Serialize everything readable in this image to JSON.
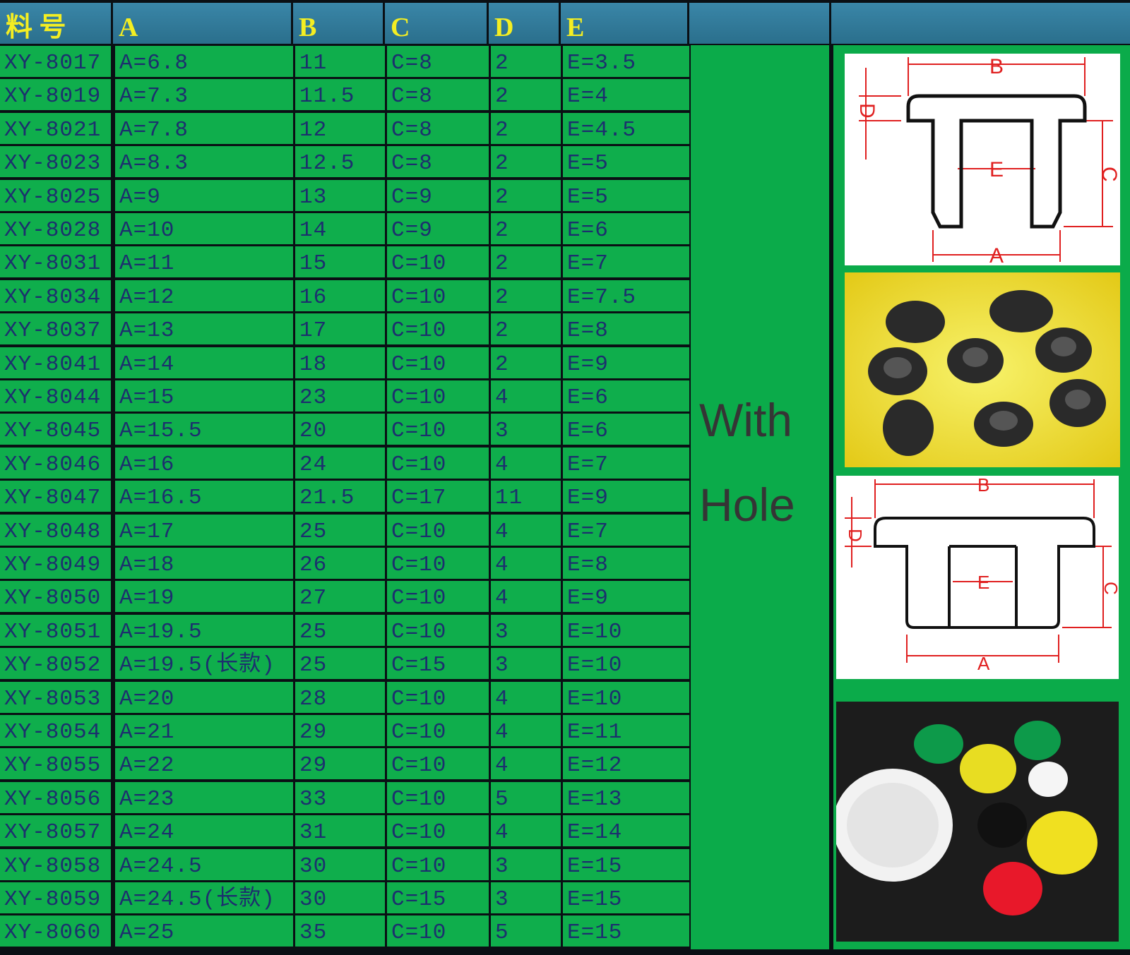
{
  "header": {
    "part_no": "料 号",
    "cols": [
      "A",
      "B",
      "C",
      "D",
      "E"
    ]
  },
  "rows": [
    [
      "XY-8017",
      "A=6.8",
      "11",
      "C=8",
      "2",
      "E=3.5"
    ],
    [
      "XY-8019",
      "A=7.3",
      "11.5",
      "C=8",
      "2",
      "E=4"
    ],
    [
      "XY-8021",
      "A=7.8",
      "12",
      "C=8",
      "2",
      "E=4.5"
    ],
    [
      "XY-8023",
      "A=8.3",
      "12.5",
      "C=8",
      "2",
      "E=5"
    ],
    [
      "XY-8025",
      "A=9",
      "13",
      "C=9",
      "2",
      "E=5"
    ],
    [
      "XY-8028",
      "A=10",
      "14",
      "C=9",
      "2",
      "E=6"
    ],
    [
      "XY-8031",
      "A=11",
      "15",
      "C=10",
      "2",
      "E=7"
    ],
    [
      "XY-8034",
      "A=12",
      "16",
      "C=10",
      "2",
      "E=7.5"
    ],
    [
      "XY-8037",
      "A=13",
      "17",
      "C=10",
      "2",
      "E=8"
    ],
    [
      "XY-8041",
      "A=14",
      "18",
      "C=10",
      "2",
      "E=9"
    ],
    [
      "XY-8044",
      "A=15",
      "23",
      "C=10",
      "4",
      "E=6"
    ],
    [
      "XY-8045",
      "A=15.5",
      "20",
      "C=10",
      "3",
      "E=6"
    ],
    [
      "XY-8046",
      "A=16",
      "24",
      "C=10",
      "4",
      "E=7"
    ],
    [
      "XY-8047",
      "A=16.5",
      "21.5",
      "C=17",
      "11",
      "E=9"
    ],
    [
      "XY-8048",
      "A=17",
      "25",
      "C=10",
      "4",
      "E=7"
    ],
    [
      "XY-8049",
      "A=18",
      "26",
      "C=10",
      "4",
      "E=8"
    ],
    [
      "XY-8050",
      "A=19",
      "27",
      "C=10",
      "4",
      "E=9"
    ],
    [
      "XY-8051",
      "A=19.5",
      "25",
      "C=10",
      "3",
      "E=10"
    ],
    [
      "XY-8052",
      "A=19.5(长款)",
      "25",
      "C=15",
      "3",
      "E=10"
    ],
    [
      "XY-8053",
      "A=20",
      "28",
      "C=10",
      "4",
      "E=10"
    ],
    [
      "XY-8054",
      "A=21",
      "29",
      "C=10",
      "4",
      "E=11"
    ],
    [
      "XY-8055",
      "A=22",
      "29",
      "C=10",
      "4",
      "E=12"
    ],
    [
      "XY-8056",
      "A=23",
      "33",
      "C=10",
      "5",
      "E=13"
    ],
    [
      "XY-8057",
      "A=24",
      "31",
      "C=10",
      "4",
      "E=14"
    ],
    [
      "XY-8058",
      "A=24.5",
      "30",
      "C=10",
      "3",
      "E=15"
    ],
    [
      "XY-8059",
      "A=24.5(长款)",
      "30",
      "C=15",
      "3",
      "E=15"
    ],
    [
      "XY-8060",
      "A=25",
      "35",
      "C=10",
      "5",
      "E=15"
    ]
  ],
  "side_label": {
    "line1": "With",
    "line2": "Hole"
  },
  "diagram_labels": {
    "a": "A",
    "b": "B",
    "c": "C",
    "d": "D",
    "e": "E"
  },
  "colors": {
    "header": "#2e7d9a",
    "header_text": "#f4ee22",
    "row": "#0fae4c",
    "cell_text": "#1c2f6e",
    "dimension": "#e02020"
  }
}
